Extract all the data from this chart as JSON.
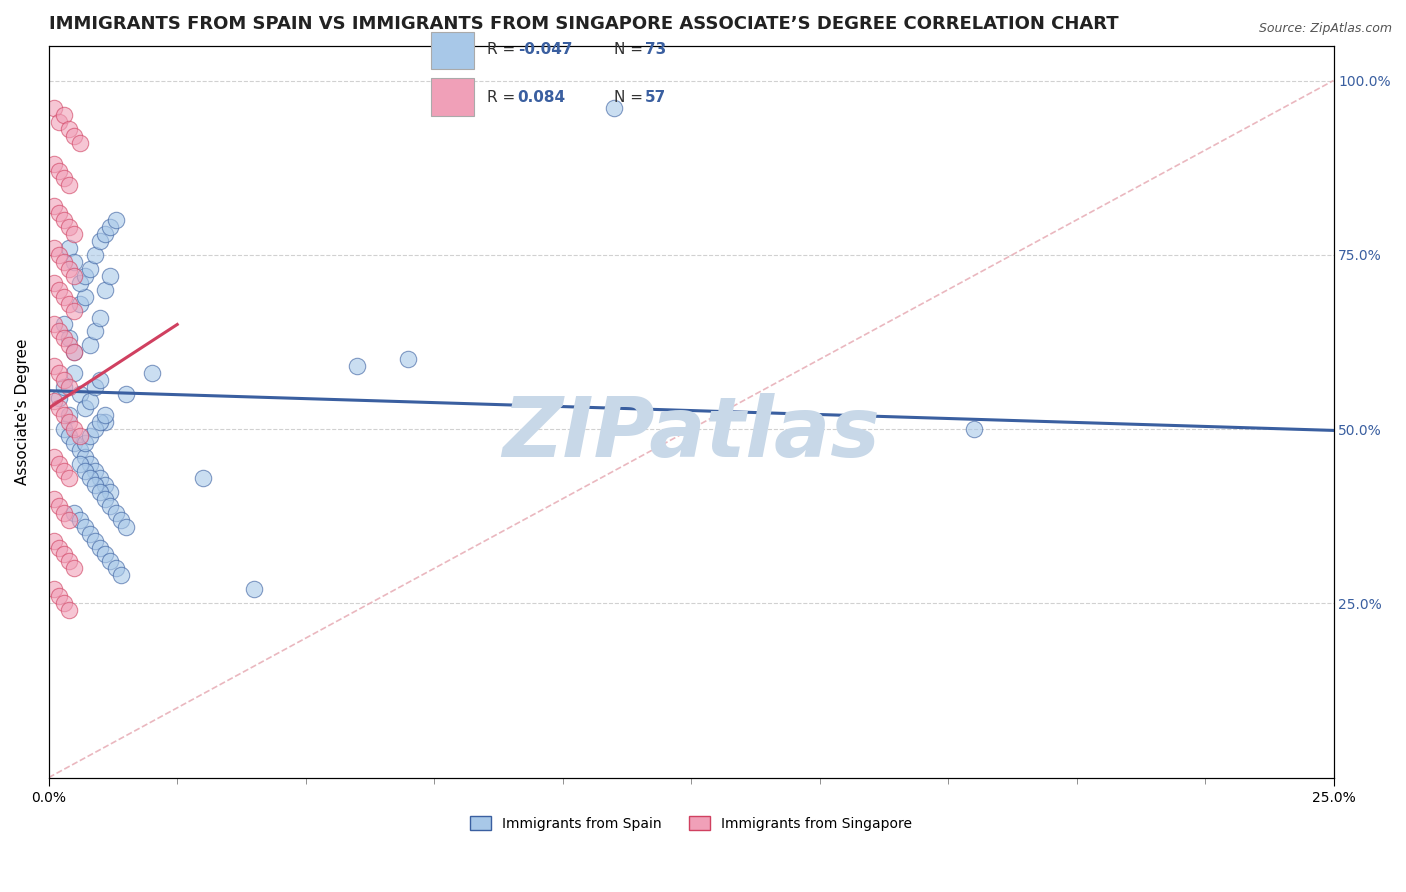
{
  "title": "IMMIGRANTS FROM SPAIN VS IMMIGRANTS FROM SINGAPORE ASSOCIATE’S DEGREE CORRELATION CHART",
  "source_text": "Source: ZipAtlas.com",
  "ylabel": "Associate's Degree",
  "legend_blue_label": "Immigrants from Spain",
  "legend_pink_label": "Immigrants from Singapore",
  "blue_color": "#A8C8E8",
  "pink_color": "#F0A0B8",
  "blue_line_color": "#3A5FA0",
  "pink_line_color": "#D04060",
  "watermark": "ZIPatlas",
  "watermark_color": "#C8D8E8",
  "blue_scatter_x": [
    0.002,
    0.003,
    0.004,
    0.005,
    0.006,
    0.007,
    0.008,
    0.009,
    0.01,
    0.011,
    0.003,
    0.004,
    0.005,
    0.006,
    0.007,
    0.008,
    0.009,
    0.01,
    0.011,
    0.012,
    0.004,
    0.005,
    0.006,
    0.007,
    0.008,
    0.009,
    0.01,
    0.011,
    0.012,
    0.013,
    0.003,
    0.004,
    0.005,
    0.006,
    0.007,
    0.008,
    0.009,
    0.01,
    0.011,
    0.012,
    0.005,
    0.006,
    0.007,
    0.008,
    0.009,
    0.01,
    0.011,
    0.012,
    0.013,
    0.014,
    0.006,
    0.007,
    0.008,
    0.009,
    0.01,
    0.011,
    0.012,
    0.013,
    0.014,
    0.015,
    0.007,
    0.008,
    0.009,
    0.01,
    0.011,
    0.015,
    0.02,
    0.03,
    0.04,
    0.11,
    0.18,
    0.07,
    0.06
  ],
  "blue_scatter_y": [
    0.545,
    0.56,
    0.52,
    0.58,
    0.55,
    0.53,
    0.54,
    0.56,
    0.57,
    0.51,
    0.65,
    0.63,
    0.61,
    0.68,
    0.69,
    0.62,
    0.64,
    0.66,
    0.7,
    0.72,
    0.76,
    0.74,
    0.71,
    0.72,
    0.73,
    0.75,
    0.77,
    0.78,
    0.79,
    0.8,
    0.5,
    0.49,
    0.48,
    0.47,
    0.46,
    0.45,
    0.44,
    0.43,
    0.42,
    0.41,
    0.38,
    0.37,
    0.36,
    0.35,
    0.34,
    0.33,
    0.32,
    0.31,
    0.3,
    0.29,
    0.45,
    0.44,
    0.43,
    0.42,
    0.41,
    0.4,
    0.39,
    0.38,
    0.37,
    0.36,
    0.48,
    0.49,
    0.5,
    0.51,
    0.52,
    0.55,
    0.58,
    0.43,
    0.27,
    0.96,
    0.5,
    0.6,
    0.59
  ],
  "pink_scatter_x": [
    0.001,
    0.002,
    0.003,
    0.004,
    0.005,
    0.006,
    0.001,
    0.002,
    0.003,
    0.004,
    0.001,
    0.002,
    0.003,
    0.004,
    0.005,
    0.001,
    0.002,
    0.003,
    0.004,
    0.005,
    0.001,
    0.002,
    0.003,
    0.004,
    0.005,
    0.001,
    0.002,
    0.003,
    0.004,
    0.005,
    0.001,
    0.002,
    0.003,
    0.004,
    0.001,
    0.002,
    0.003,
    0.004,
    0.005,
    0.006,
    0.001,
    0.002,
    0.003,
    0.004,
    0.001,
    0.002,
    0.003,
    0.004,
    0.001,
    0.002,
    0.003,
    0.004,
    0.005,
    0.001,
    0.002,
    0.003,
    0.004
  ],
  "pink_scatter_y": [
    0.96,
    0.94,
    0.95,
    0.93,
    0.92,
    0.91,
    0.88,
    0.87,
    0.86,
    0.85,
    0.82,
    0.81,
    0.8,
    0.79,
    0.78,
    0.76,
    0.75,
    0.74,
    0.73,
    0.72,
    0.71,
    0.7,
    0.69,
    0.68,
    0.67,
    0.65,
    0.64,
    0.63,
    0.62,
    0.61,
    0.59,
    0.58,
    0.57,
    0.56,
    0.54,
    0.53,
    0.52,
    0.51,
    0.5,
    0.49,
    0.46,
    0.45,
    0.44,
    0.43,
    0.4,
    0.39,
    0.38,
    0.37,
    0.34,
    0.33,
    0.32,
    0.31,
    0.3,
    0.27,
    0.26,
    0.25,
    0.24
  ],
  "xlim": [
    0.0,
    0.25
  ],
  "ylim": [
    0.0,
    1.05
  ],
  "blue_trend_x": [
    0.0,
    0.25
  ],
  "blue_trend_y": [
    0.555,
    0.498
  ],
  "pink_trend_x": [
    0.0,
    0.025
  ],
  "pink_trend_y": [
    0.53,
    0.65
  ],
  "diag_line_x": [
    0.0,
    0.25
  ],
  "diag_line_y": [
    0.0,
    1.0
  ],
  "background_color": "#FFFFFF",
  "grid_color": "#CCCCCC",
  "title_fontsize": 13,
  "watermark_fontsize": 60
}
